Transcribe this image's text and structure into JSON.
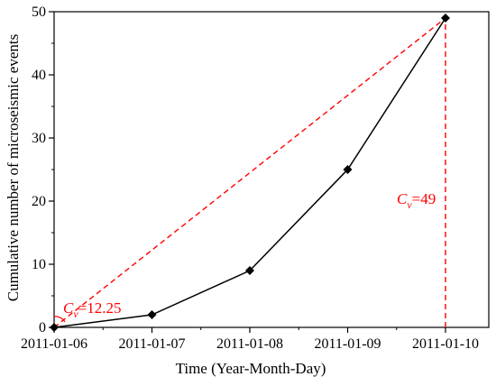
{
  "chart_data": {
    "type": "line",
    "xlabel": "Time (Year-Month-Day)",
    "ylabel": "Cumulative number of microseismic events",
    "categories": [
      "2011-01-06",
      "2011-01-07",
      "2011-01-08",
      "2011-01-09",
      "2011-01-10"
    ],
    "series": [
      {
        "values": [
          0,
          2,
          9,
          25,
          49
        ],
        "color": "#000000",
        "marker": "diamond"
      }
    ],
    "ylim": [
      0,
      50
    ],
    "yticks": [
      0,
      10,
      20,
      30,
      40,
      50
    ],
    "grid": false,
    "reference_lines": [
      {
        "from": [
          "2011-01-06",
          0
        ],
        "to": [
          "2011-01-10",
          49
        ],
        "style": "dashed",
        "color": "#ff0000"
      },
      {
        "from": [
          "2011-01-10",
          0
        ],
        "to": [
          "2011-01-10",
          49
        ],
        "style": "dashed",
        "color": "#ff0000"
      }
    ],
    "annotations": [
      {
        "symbol": "C",
        "subscript": "v",
        "text": "=12.25",
        "color": "#ff0000"
      },
      {
        "symbol": "C",
        "subscript": "v",
        "text": "=49",
        "color": "#ff0000"
      }
    ]
  }
}
